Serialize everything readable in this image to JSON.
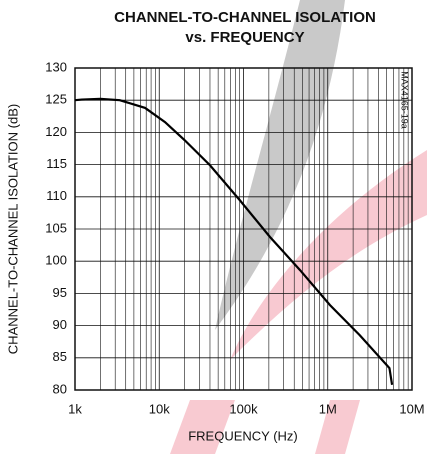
{
  "chart_data": {
    "type": "line",
    "title": [
      "CHANNEL-TO-CHANNEL ISOLATION",
      "vs. FREQUENCY"
    ],
    "x_label": "FREQUENCY (Hz)",
    "y_label": "CHANNEL-TO-CHANNEL ISOLATION (dB)",
    "annotation": "MAX4165-19a",
    "xscale": "log",
    "xlim": [
      1000,
      10000000
    ],
    "xticks": [
      {
        "value": 1000,
        "label": "1k"
      },
      {
        "value": 10000,
        "label": "10k"
      },
      {
        "value": 100000,
        "label": "100k"
      },
      {
        "value": 1000000,
        "label": "1M"
      },
      {
        "value": 10000000,
        "label": "10M"
      }
    ],
    "ylim": [
      80,
      130
    ],
    "yticks": [
      80,
      85,
      90,
      95,
      100,
      105,
      110,
      115,
      120,
      125,
      130
    ],
    "grid": true,
    "minor_grid": true,
    "x": [
      1000,
      1200,
      2000,
      3400,
      6800,
      11700,
      20000,
      40000,
      90000,
      205000,
      470000,
      1060000,
      2400000,
      5400000,
      5800000
    ],
    "series": [
      {
        "color": "#000000",
        "values": [
          125,
          125.1,
          125.2,
          125,
          123.8,
          121.6,
          118.8,
          114.9,
          109.5,
          103.8,
          98.6,
          93.2,
          88.5,
          83.4,
          80.8
        ]
      }
    ]
  }
}
